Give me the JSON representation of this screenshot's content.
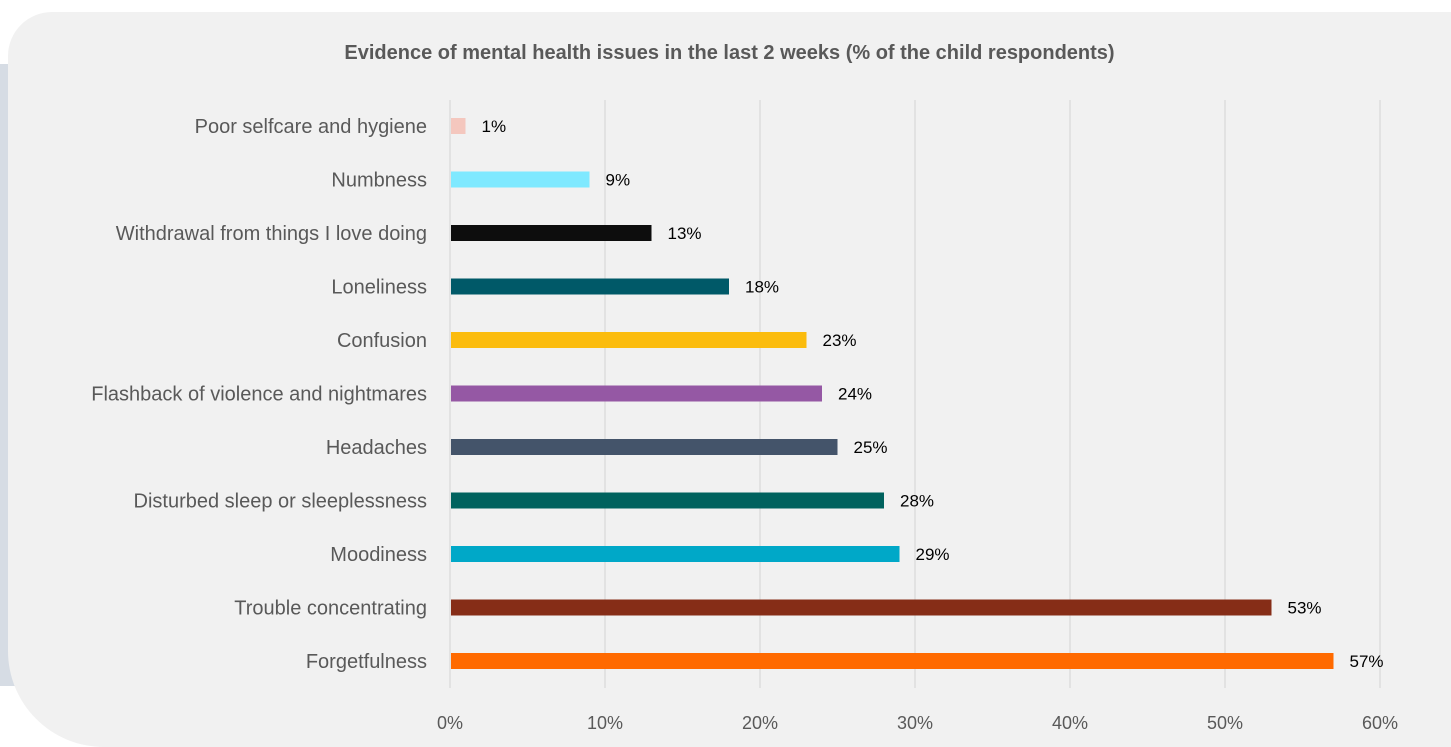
{
  "colors": {
    "page_band": "#d6dce4",
    "card": "#f1f1f1",
    "grid": "#d9d9d9",
    "title": "#595959",
    "category_text": "#595959",
    "tick_text": "#595959",
    "data_label": "#000000"
  },
  "chart_data": {
    "type": "bar",
    "orientation": "horizontal",
    "title": "Evidence of mental health issues in the last 2 weeks (% of the child respondents)",
    "xlabel": "",
    "ylabel": "",
    "xlim": [
      0,
      60
    ],
    "x_ticks": [
      "0%",
      "10%",
      "20%",
      "30%",
      "40%",
      "50%",
      "60%"
    ],
    "grid": true,
    "legend": "none",
    "categories": [
      "Poor selfcare and hygiene",
      "Numbness",
      "Withdrawal from things I love doing",
      "Loneliness",
      "Confusion",
      "Flashback of violence and nightmares",
      "Headaches",
      "Disturbed sleep or sleeplessness",
      "Moodiness",
      "Trouble concentrating",
      "Forgetfulness"
    ],
    "values": [
      1,
      9,
      13,
      18,
      23,
      24,
      25,
      28,
      29,
      53,
      57
    ],
    "data_labels": [
      "1%",
      "9%",
      "13%",
      "18%",
      "23%",
      "24%",
      "25%",
      "28%",
      "29%",
      "53%",
      "57%"
    ],
    "bar_colors": [
      "#f4c7be",
      "#7fe9ff",
      "#0d0d0d",
      "#005968",
      "#fbbc0e",
      "#9558a4",
      "#44546a",
      "#00625e",
      "#00a8c8",
      "#862d17",
      "#ff6a00"
    ]
  }
}
